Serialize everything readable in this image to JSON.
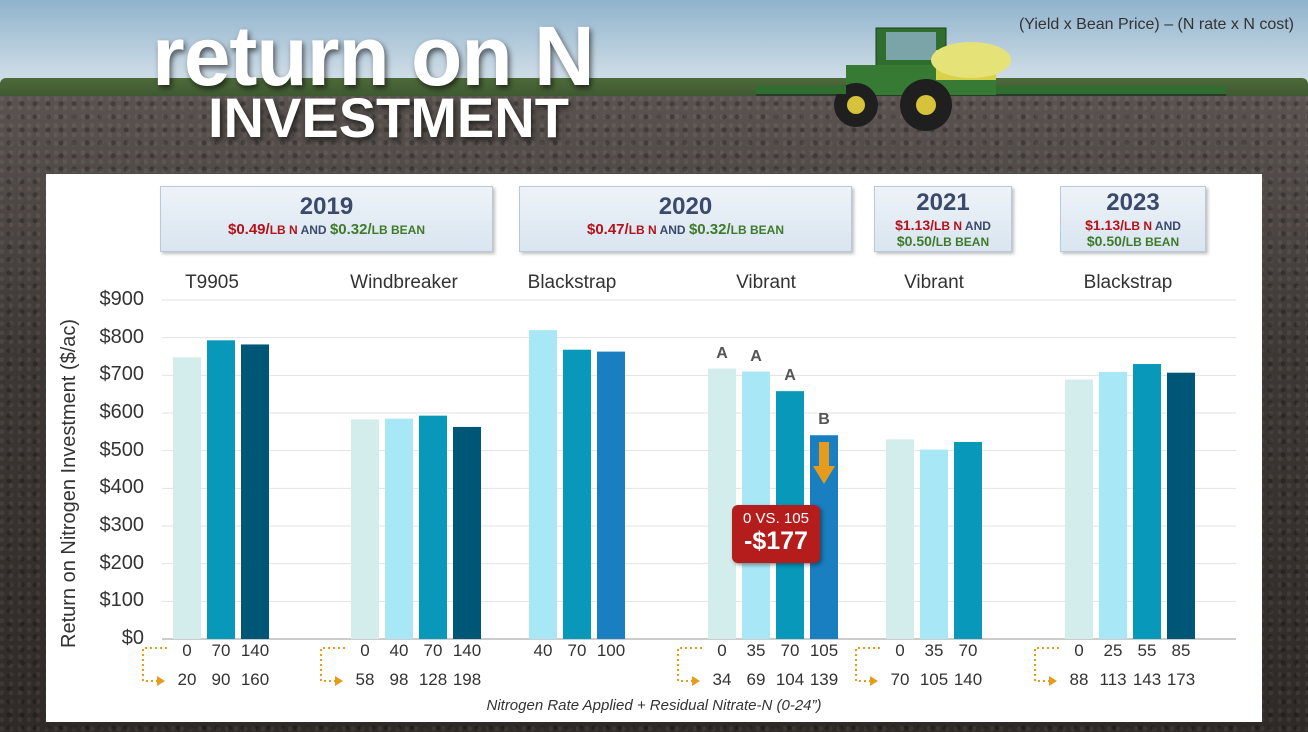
{
  "title": {
    "line1": "return on N",
    "line2": "INVESTMENT"
  },
  "formula": "(Yield x Bean Price) – (N rate x N cost)",
  "years": [
    {
      "year": "2019",
      "n_price": "$0.49/",
      "n_unit": "LB N",
      "and": " AND ",
      "bean_price": "$0.32/",
      "bean_unit": "LB BEAN"
    },
    {
      "year": "2020",
      "n_price": "$0.47/",
      "n_unit": "LB N",
      "and": " AND ",
      "bean_price": "$0.32/",
      "bean_unit": "LB BEAN"
    },
    {
      "year": "2021",
      "n_price": "$1.13/",
      "n_unit": "LB N",
      "and": " AND",
      "bean_price": "$0.50/",
      "bean_unit": "LB BEAN"
    },
    {
      "year": "2023",
      "n_price": "$1.13/",
      "n_unit": "LB N",
      "and": " AND",
      "bean_price": "$0.50/",
      "bean_unit": "LB BEAN"
    }
  ],
  "callout": {
    "line1": "0 VS. 105",
    "line2": "-$177"
  },
  "colors": {
    "c1": "#d3ecec",
    "c2": "#a8e8f6",
    "c3": "#0798ba",
    "c4": "#005677",
    "c5": "#1a7fc0"
  },
  "chart_data": {
    "type": "bar",
    "ylabel": "Return on Nitrogen Investment ($/ac)",
    "xlabel": "Nitrogen Rate Applied + Residual Nitrate-N (0-24”)",
    "ylim": [
      0,
      900
    ],
    "yticks": [
      "$0",
      "$100",
      "$200",
      "$300",
      "$400",
      "$500",
      "$600",
      "$700",
      "$800",
      "$900"
    ],
    "grid": true,
    "groups": [
      {
        "variety": "T9905",
        "year": "2019",
        "rates": [
          "0",
          "70",
          "140"
        ],
        "totals": [
          "20",
          "90",
          "160"
        ],
        "values": [
          748,
          793,
          782
        ],
        "colors": [
          "c1",
          "c3",
          "c4"
        ],
        "sig": [
          "",
          "",
          ""
        ]
      },
      {
        "variety": "Windbreaker",
        "year": "2019",
        "rates": [
          "0",
          "40",
          "70",
          "140"
        ],
        "totals": [
          "58",
          "98",
          "128",
          "198"
        ],
        "values": [
          583,
          585,
          593,
          563
        ],
        "colors": [
          "c1",
          "c2",
          "c3",
          "c4"
        ],
        "sig": [
          "",
          "",
          "",
          ""
        ]
      },
      {
        "variety": "Blackstrap",
        "year": "2020",
        "rates": [
          "40",
          "70",
          "100"
        ],
        "totals": [],
        "values": [
          820,
          768,
          763
        ],
        "colors": [
          "c2",
          "c3",
          "c5"
        ],
        "sig": [
          "",
          "",
          ""
        ]
      },
      {
        "variety": "Vibrant",
        "year": "2020",
        "rates": [
          "0",
          "35",
          "70",
          "105"
        ],
        "totals": [
          "34",
          "69",
          "104",
          "139"
        ],
        "values": [
          718,
          710,
          658,
          541
        ],
        "colors": [
          "c1",
          "c2",
          "c3",
          "c5"
        ],
        "sig": [
          "A",
          "A",
          "A",
          "B"
        ]
      },
      {
        "variety": "Vibrant",
        "year": "2021",
        "rates": [
          "0",
          "35",
          "70"
        ],
        "totals": [
          "70",
          "105",
          "140"
        ],
        "values": [
          530,
          503,
          523
        ],
        "colors": [
          "c1",
          "c2",
          "c3"
        ],
        "sig": [
          "",
          "",
          ""
        ]
      },
      {
        "variety": "Blackstrap",
        "year": "2023",
        "rates": [
          "0",
          "25",
          "55",
          "85"
        ],
        "totals": [
          "88",
          "113",
          "143",
          "173"
        ],
        "values": [
          689,
          709,
          730,
          707
        ],
        "colors": [
          "c1",
          "c2",
          "c3",
          "c4"
        ],
        "sig": [
          "",
          "",
          "",
          ""
        ]
      }
    ]
  }
}
